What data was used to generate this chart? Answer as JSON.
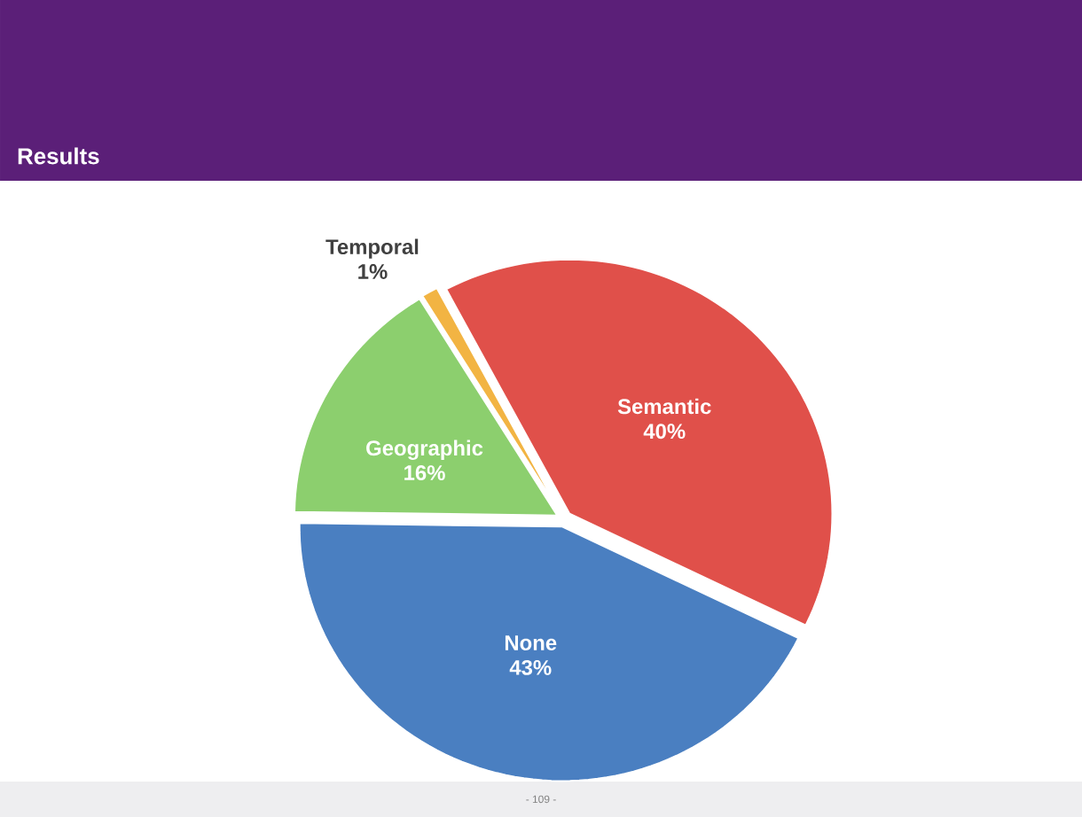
{
  "chart_data": {
    "type": "pie",
    "title": "Results",
    "categories": [
      "Semantic",
      "None",
      "Geographic",
      "Temporal"
    ],
    "values": [
      40,
      43,
      16,
      1
    ],
    "value_labels": [
      "40%",
      "43%",
      "16%",
      "1%"
    ],
    "colors": [
      "#e0504a",
      "#4a7fc1",
      "#8ccf6e",
      "#f2b443"
    ],
    "annotations": [
      "- 109 -"
    ]
  }
}
